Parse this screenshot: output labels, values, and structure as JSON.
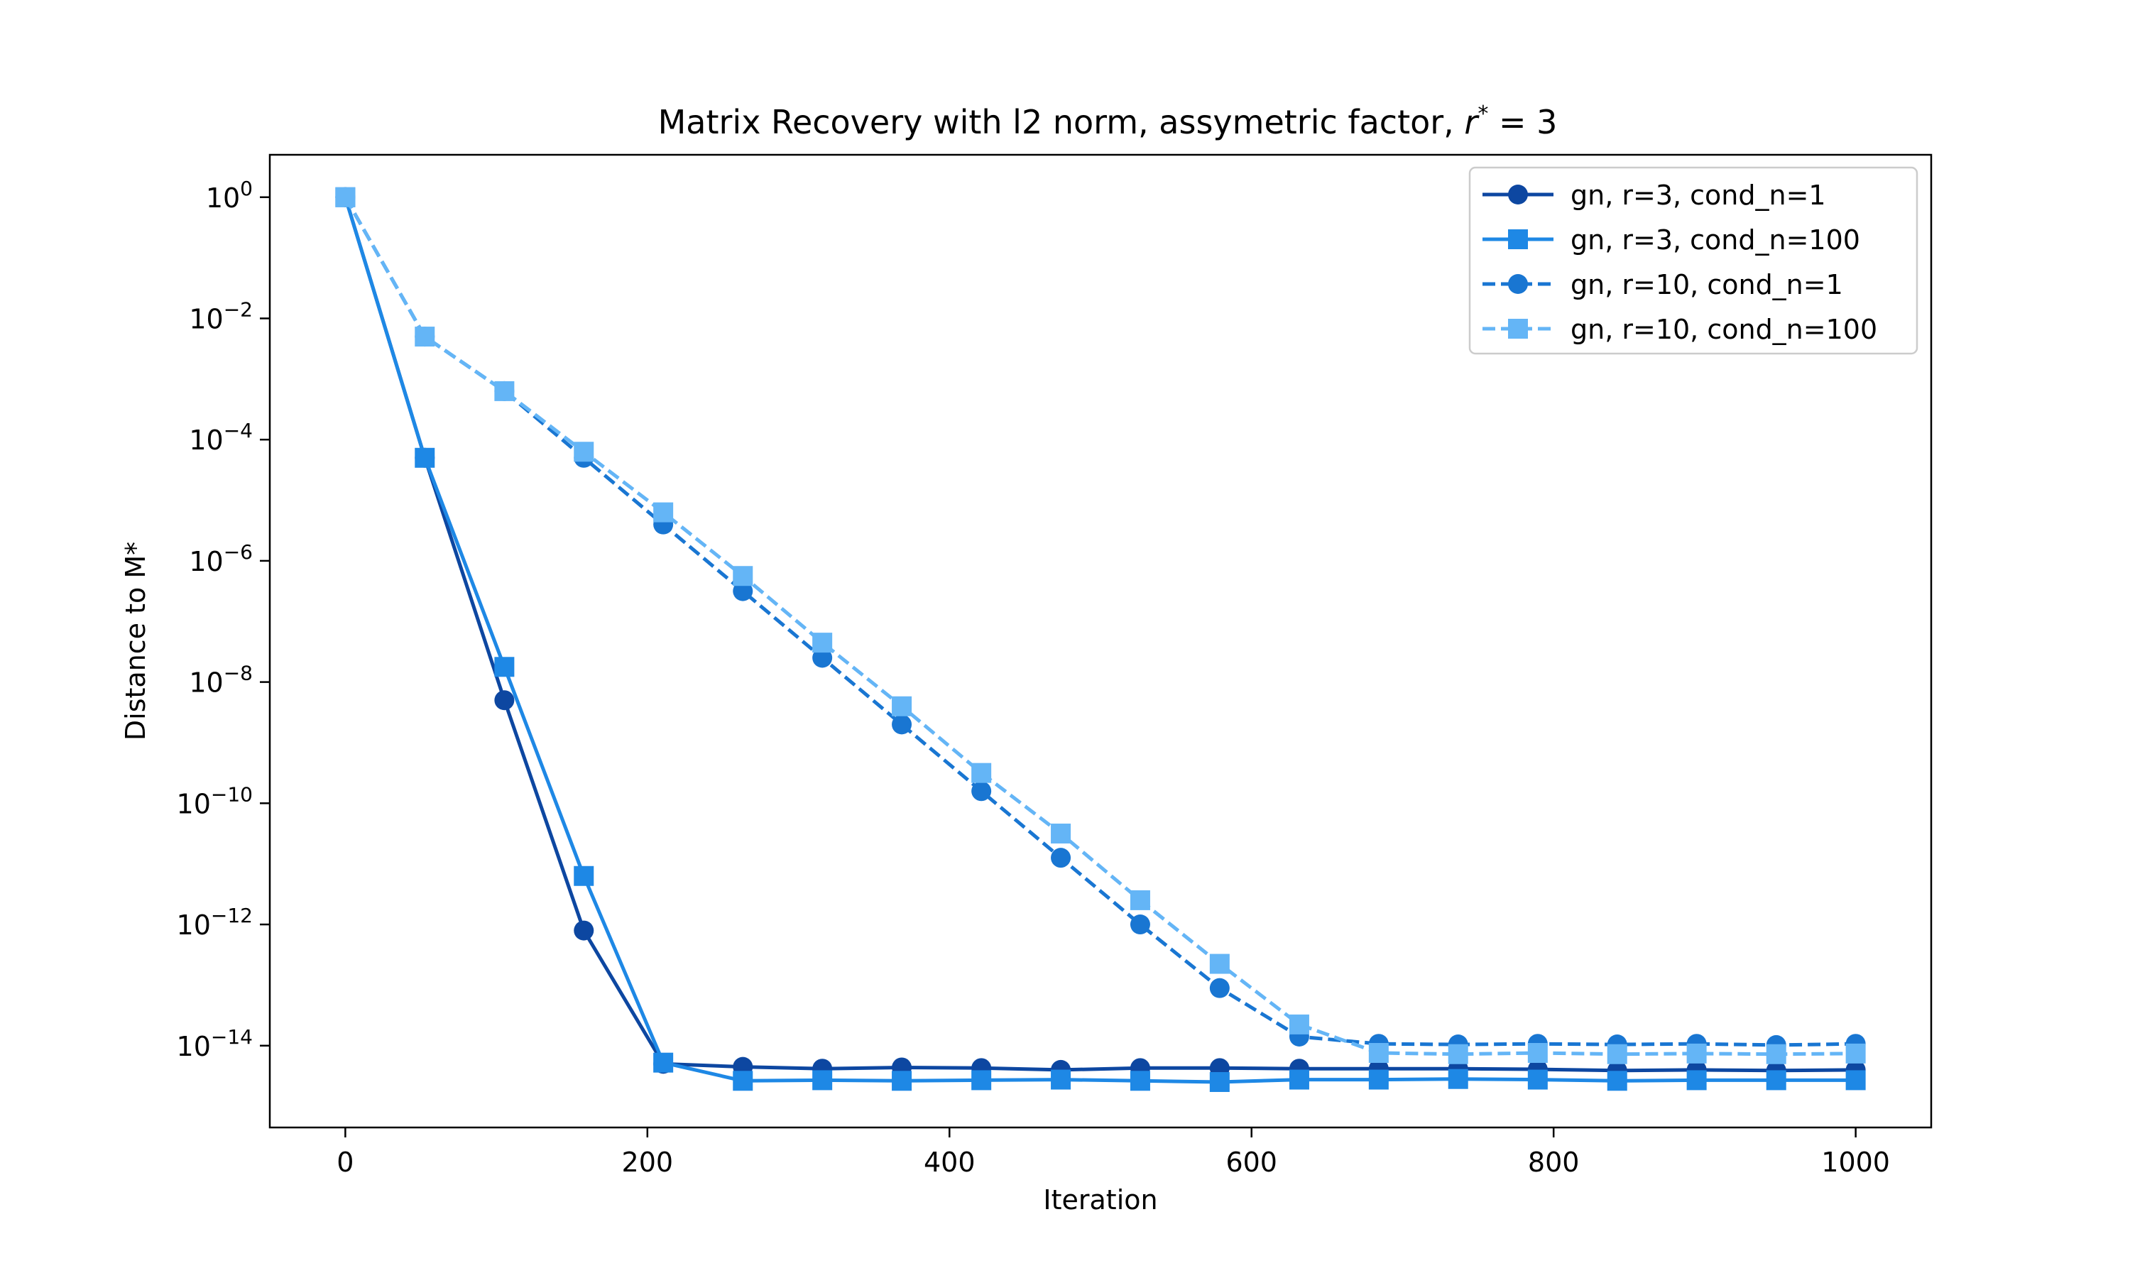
{
  "chart_data": {
    "type": "line",
    "title": "Matrix Recovery with l2 norm, assymetric factor, ",
    "title_math_var": "r",
    "title_math_sup": "*",
    "title_math_rest": " = 3",
    "xlabel": "Iteration",
    "ylabel": "Distance to M*",
    "xlim": [
      -50,
      1050
    ],
    "ylim_log10": [
      -15.35,
      0.7
    ],
    "y_scale": "log",
    "grid": false,
    "legend_position": "top-right",
    "x_ticks": [
      0,
      200,
      400,
      600,
      800,
      1000
    ],
    "x_tick_labels": [
      "0",
      "200",
      "400",
      "600",
      "800",
      "1000"
    ],
    "y_ticks_log10": [
      0,
      -2,
      -4,
      -6,
      -8,
      -10,
      -12,
      -14
    ],
    "y_tick_base": "10",
    "y_tick_exponents": [
      "0",
      "−2",
      "−4",
      "−6",
      "−8",
      "−10",
      "−12",
      "−14"
    ],
    "series": [
      {
        "name": "gn, r=3, cond_n=1",
        "color": "#0d47a1",
        "dash": "solid",
        "marker": "circle",
        "x": [
          0,
          52.6,
          105.3,
          157.9,
          210.5,
          263.2,
          315.8,
          368.4,
          421.1,
          473.7,
          526.3,
          578.9,
          631.6,
          684.2,
          736.8,
          789.5,
          842.1,
          894.7,
          947.4,
          1000
        ],
        "log10_y": [
          0,
          -4.3,
          -8.3,
          -12.1,
          -14.3,
          -14.35,
          -14.38,
          -14.36,
          -14.37,
          -14.4,
          -14.37,
          -14.37,
          -14.38,
          -14.38,
          -14.38,
          -14.39,
          -14.41,
          -14.4,
          -14.41,
          -14.4
        ]
      },
      {
        "name": "gn, r=3, cond_n=100",
        "color": "#1e88e5",
        "dash": "solid",
        "marker": "square",
        "x": [
          0,
          52.6,
          105.3,
          157.9,
          210.5,
          263.2,
          315.8,
          368.4,
          421.1,
          473.7,
          526.3,
          578.9,
          631.6,
          684.2,
          736.8,
          789.5,
          842.1,
          894.7,
          947.4,
          1000
        ],
        "log10_y": [
          0,
          -4.3,
          -7.75,
          -11.2,
          -14.28,
          -14.58,
          -14.57,
          -14.58,
          -14.57,
          -14.56,
          -14.58,
          -14.6,
          -14.56,
          -14.56,
          -14.55,
          -14.56,
          -14.58,
          -14.57,
          -14.57,
          -14.57
        ]
      },
      {
        "name": "gn, r=10, cond_n=1",
        "color": "#1976d2",
        "dash": "dashed",
        "marker": "circle",
        "x": [
          0,
          52.6,
          105.3,
          157.9,
          210.5,
          263.2,
          315.8,
          368.4,
          421.1,
          473.7,
          526.3,
          578.9,
          631.6,
          684.2,
          736.8,
          789.5,
          842.1,
          894.7,
          947.4,
          1000
        ],
        "log10_y": [
          0,
          -2.3,
          -3.2,
          -4.3,
          -5.4,
          -6.5,
          -7.6,
          -8.7,
          -9.8,
          -10.9,
          -12.0,
          -13.05,
          -13.85,
          -13.97,
          -13.98,
          -13.97,
          -13.98,
          -13.97,
          -13.99,
          -13.97
        ]
      },
      {
        "name": "gn, r=10, cond_n=100",
        "color": "#64b5f6",
        "dash": "dashed",
        "marker": "square",
        "x": [
          0,
          52.6,
          105.3,
          157.9,
          210.5,
          263.2,
          315.8,
          368.4,
          421.1,
          473.7,
          526.3,
          578.9,
          631.6,
          684.2,
          736.8,
          789.5,
          842.1,
          894.7,
          947.4,
          1000
        ],
        "log10_y": [
          0,
          -2.3,
          -3.2,
          -4.2,
          -5.2,
          -6.25,
          -7.35,
          -8.4,
          -9.5,
          -10.5,
          -11.6,
          -12.65,
          -13.65,
          -14.12,
          -14.14,
          -14.12,
          -14.14,
          -14.13,
          -14.14,
          -14.13
        ]
      }
    ]
  }
}
